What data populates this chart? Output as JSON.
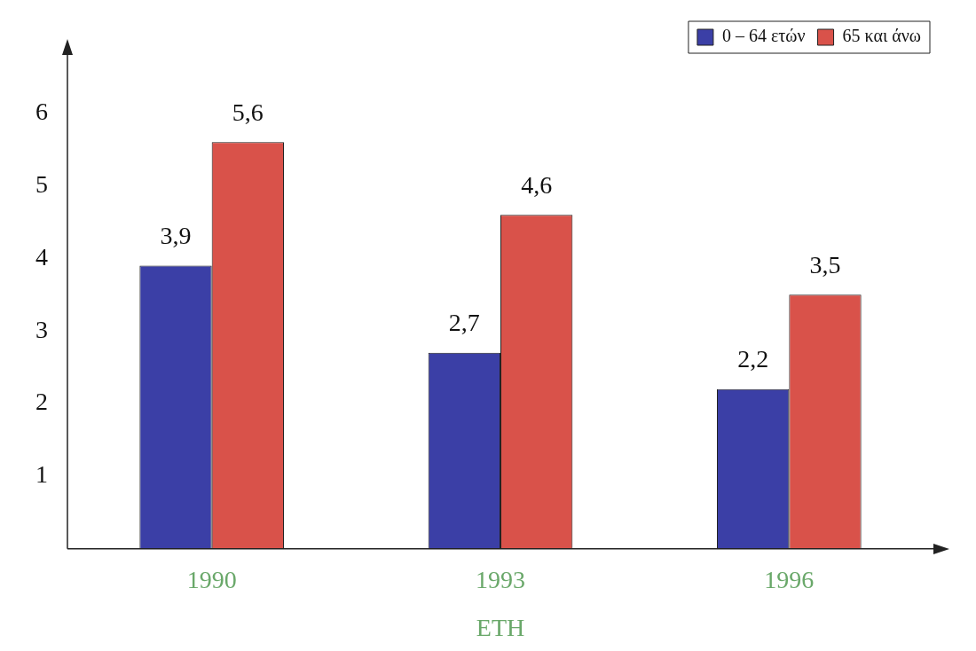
{
  "chart_data": {
    "type": "bar",
    "categories": [
      "1990",
      "1993",
      "1996"
    ],
    "xlabel": "ΕΤΗ",
    "series": [
      {
        "name": "0 – 64 ετών",
        "color": "#3b3fa6",
        "values": [
          3.9,
          2.7,
          2.2
        ],
        "value_labels": [
          "3,9",
          "2,7",
          "2,2"
        ]
      },
      {
        "name": "65 και άνω",
        "color": "#d9524a",
        "values": [
          5.6,
          4.6,
          3.5
        ],
        "value_labels": [
          "5,6",
          "4,6",
          "3,5"
        ]
      }
    ],
    "ylim": [
      0,
      6.8
    ],
    "yticks": [
      1,
      2,
      3,
      4,
      5,
      6
    ],
    "grid": false,
    "legend": "top right"
  }
}
